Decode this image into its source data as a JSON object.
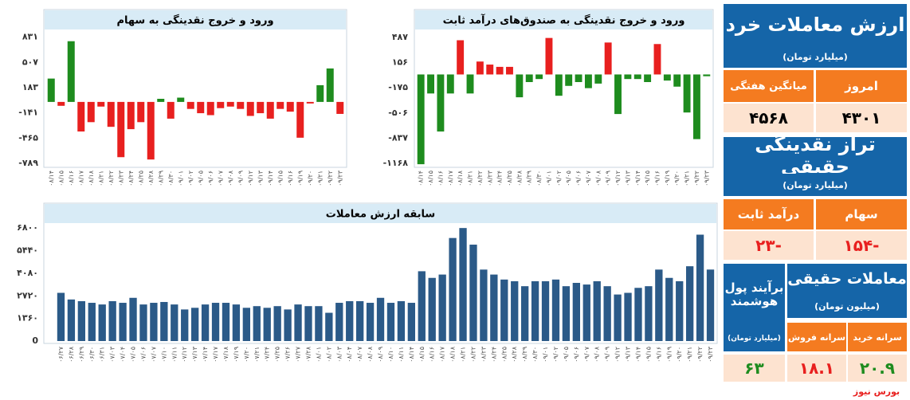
{
  "chart_data": [
    {
      "type": "bar",
      "title": "ورود و خروج نقدینگی به سهام",
      "categories": [
        "۰۸/۱۴",
        "۰۸/۱۵",
        "۰۸/۱۶",
        "۰۸/۱۷",
        "۰۸/۱۸",
        "۰۸/۲۱",
        "۰۸/۲۲",
        "۰۸/۲۳",
        "۰۸/۲۴",
        "۰۸/۲۵",
        "۰۸/۲۸",
        "۰۸/۲۹",
        "۰۸/۳۰",
        "۰۹/۰۱",
        "۰۹/۰۲",
        "۰۹/۰۵",
        "۰۹/۰۶",
        "۰۹/۰۷",
        "۰۹/۰۸",
        "۰۹/۰۹",
        "۰۹/۱۲",
        "۰۹/۱۳",
        "۰۹/۱۴",
        "۰۹/۱۵",
        "۰۹/۱۶",
        "۰۹/۱۹",
        "۰۹/۲۰",
        "۰۹/۲۱",
        "۰۹/۲۲",
        "۰۹/۲۳"
      ],
      "values": [
        300,
        -50,
        780,
        -380,
        -260,
        -60,
        -320,
        -710,
        -350,
        -260,
        -740,
        40,
        -215,
        55,
        -90,
        -145,
        -170,
        -80,
        -60,
        -90,
        -180,
        -145,
        -215,
        -90,
        -125,
        -460,
        -20,
        215,
        430,
        -154
      ],
      "positive_color": "#1e8c1e",
      "negative_color": "#e8201f",
      "ylim": [
        -820,
        900
      ],
      "yticks": [
        {
          "value": 831,
          "label": "۸۳۱"
        },
        {
          "value": 507,
          "label": "۵۰۷"
        },
        {
          "value": 183,
          "label": "۱۸۳"
        },
        {
          "value": -141,
          "label": "-۱۴۱"
        },
        {
          "value": -465,
          "label": "-۴۶۵"
        },
        {
          "value": -789,
          "label": "-۷۸۹"
        }
      ]
    },
    {
      "type": "bar",
      "title": "ورود و خروج نقدینگی به صندوق‌های درآمد ثابت",
      "categories": [
        "۰۸/۱۴",
        "۰۸/۱۵",
        "۰۸/۱۶",
        "۰۸/۱۷",
        "۰۸/۱۸",
        "۰۸/۲۱",
        "۰۸/۲۲",
        "۰۸/۲۳",
        "۰۸/۲۴",
        "۰۸/۲۵",
        "۰۸/۲۸",
        "۰۸/۲۹",
        "۰۸/۳۰",
        "۰۹/۰۱",
        "۰۹/۰۲",
        "۰۹/۰۵",
        "۰۹/۰۶",
        "۰۹/۰۷",
        "۰۹/۰۸",
        "۰۹/۰۹",
        "۰۹/۱۲",
        "۰۹/۱۳",
        "۰۹/۱۴",
        "۰۹/۱۵",
        "۰۹/۱۶",
        "۰۹/۱۹",
        "۰۹/۲۰",
        "۰۹/۲۱",
        "۰۹/۲۲",
        "۰۹/۲۳"
      ],
      "values": [
        -1180,
        -250,
        -750,
        -250,
        450,
        -250,
        170,
        130,
        100,
        100,
        -300,
        -100,
        -60,
        480,
        -280,
        -150,
        -100,
        -180,
        -120,
        420,
        -520,
        -60,
        -60,
        -100,
        400,
        -80,
        -160,
        -500,
        -850,
        -23
      ],
      "positive_color": "#e8201f",
      "negative_color": "#1e8c1e",
      "ylim": [
        -1200,
        560
      ],
      "yticks": [
        {
          "value": 487,
          "label": "۴۸۷"
        },
        {
          "value": 156,
          "label": "۱۵۶"
        },
        {
          "value": -175,
          "label": "-۱۷۵"
        },
        {
          "value": -506,
          "label": "-۵۰۶"
        },
        {
          "value": -837,
          "label": "-۸۳۷"
        },
        {
          "value": -1168,
          "label": "-۱۱۶۸"
        }
      ]
    },
    {
      "type": "bar",
      "title": "سابقه ارزش معاملات",
      "categories": [
        "۰۶/۲۷",
        "۰۶/۲۸",
        "۰۶/۲۹",
        "۰۶/۳۰",
        "۰۶/۳۱",
        "۰۷/۰۳",
        "۰۷/۰۴",
        "۰۷/۰۵",
        "۰۷/۰۶",
        "۰۷/۰۷",
        "۰۷/۱۰",
        "۰۷/۱۱",
        "۰۷/۱۲",
        "۰۷/۱۳",
        "۰۷/۱۴",
        "۰۷/۱۷",
        "۰۷/۱۸",
        "۰۷/۱۹",
        "۰۷/۲۰",
        "۰۷/۲۱",
        "۰۷/۲۴",
        "۰۷/۲۵",
        "۰۷/۲۶",
        "۰۷/۲۷",
        "۰۷/۲۸",
        "۰۸/۰۱",
        "۰۸/۰۲",
        "۰۸/۰۳",
        "۰۸/۰۴",
        "۰۸/۰۷",
        "۰۸/۰۸",
        "۰۸/۰۹",
        "۰۸/۱۰",
        "۰۸/۱۱",
        "۰۸/۱۴",
        "۰۸/۱۵",
        "۰۸/۱۶",
        "۰۸/۱۷",
        "۰۸/۱۸",
        "۰۸/۲۱",
        "۰۸/۲۲",
        "۰۸/۲۳",
        "۰۸/۲۴",
        "۰۸/۲۵",
        "۰۸/۲۸",
        "۰۸/۲۹",
        "۰۸/۳۰",
        "۰۹/۰۱",
        "۰۹/۰۲",
        "۰۹/۰۵",
        "۰۹/۰۶",
        "۰۹/۰۷",
        "۰۹/۰۸",
        "۰۹/۰۹",
        "۰۹/۱۲",
        "۰۹/۱۳",
        "۰۹/۱۴",
        "۰۹/۱۵",
        "۰۹/۱۶",
        "۰۹/۱۹",
        "۰۹/۲۰",
        "۰۹/۲۱",
        "۰۹/۲۲",
        "۰۹/۲۳"
      ],
      "values": [
        2900,
        2500,
        2400,
        2300,
        2200,
        2400,
        2300,
        2600,
        2200,
        2300,
        2350,
        2200,
        1900,
        2000,
        2200,
        2300,
        2300,
        2200,
        2000,
        2100,
        2000,
        2100,
        1900,
        2200,
        2100,
        2100,
        1700,
        2300,
        2400,
        2400,
        2300,
        2600,
        2300,
        2400,
        2300,
        4200,
        3800,
        4000,
        6200,
        6800,
        5800,
        4300,
        4000,
        3700,
        3600,
        3300,
        3600,
        3600,
        3700,
        3300,
        3500,
        3400,
        3600,
        3300,
        2800,
        2900,
        3200,
        3300,
        4300,
        3800,
        3600,
        4500,
        6400,
        4301
      ],
      "color": "#2b5a88",
      "ylim": [
        0,
        7000
      ],
      "yticks": [
        {
          "value": 6800,
          "label": "۶۸۰۰"
        },
        {
          "value": 5440,
          "label": "۵۴۴۰"
        },
        {
          "value": 4080,
          "label": "۴۰۸۰"
        },
        {
          "value": 2720,
          "label": "۲۷۲۰"
        },
        {
          "value": 1360,
          "label": "۱۳۶۰"
        },
        0
      ]
    }
  ],
  "panels": {
    "retail": {
      "title": "ارزش معاملات خرد",
      "unit": "(میلیارد تومان)",
      "headers": [
        "امروز",
        "میانگین هفتگی"
      ],
      "values": [
        "۴۳۰۱",
        "۴۵۶۸"
      ]
    },
    "balance": {
      "title": "تراز نقدینگی حقیقی",
      "unit": "(میلیارد تومان)",
      "headers": [
        "سهام",
        "درآمد ثابت"
      ],
      "values": [
        "-۱۵۴",
        "-۲۳"
      ]
    },
    "individual": {
      "title": "معاملات حقیقی",
      "unit": "(میلیون تومان)",
      "headers": [
        "سرانه خرید",
        "سرانه فروش"
      ],
      "values": [
        "۲۰.۹",
        "۱۸.۱"
      ]
    },
    "smart_money": {
      "title": "برآیند پول هوشمند",
      "unit": "(میلیارد تومان)",
      "value": "۶۳"
    }
  },
  "footer": "بورس نیوز"
}
